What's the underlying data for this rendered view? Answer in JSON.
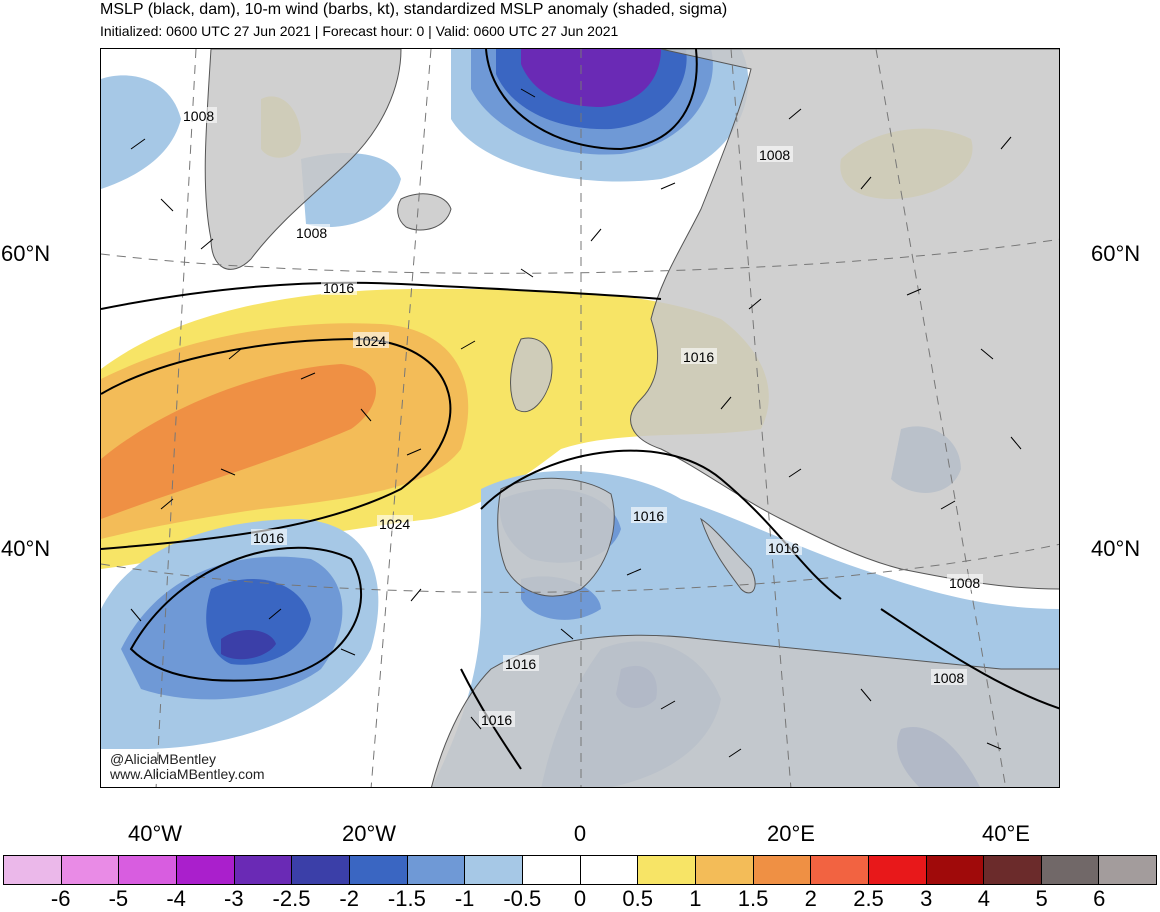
{
  "header": {
    "title": "MSLP (black, dam), 10-m wind (barbs, kt), standardized MSLP anomaly (shaded, sigma)",
    "subtitle": "Initialized: 0600 UTC 27 Jun 2021 | Forecast hour: 0 | Valid: 0600 UTC 27 Jun 2021"
  },
  "map": {
    "lat_labels": [
      "60°N",
      "40°N"
    ],
    "lon_labels": [
      "40°W",
      "20°W",
      "0",
      "20°E",
      "40°E"
    ],
    "isobar_labels": [
      "1008",
      "1008",
      "1016",
      "1024",
      "1024",
      "1016",
      "1016",
      "1016",
      "1016",
      "1016",
      "1016",
      "1008",
      "1008",
      "1008"
    ],
    "credit": [
      "@AliciaMBentley",
      "www.AliciaMBentley.com"
    ]
  },
  "colorbar": {
    "ticks": [
      "-6",
      "-5",
      "-4",
      "-3",
      "-2.5",
      "-2",
      "-1.5",
      "-1",
      "-0.5",
      "0",
      "0.5",
      "1",
      "1.5",
      "2",
      "2.5",
      "3",
      "4",
      "5",
      "6"
    ],
    "colors": [
      "#ebb8ea",
      "#e98be6",
      "#d85de0",
      "#aa1fcc",
      "#6a2ab5",
      "#3b3fa8",
      "#3a66c2",
      "#6f99d6",
      "#a6c8e6",
      "#ffffff",
      "#ffffff",
      "#f7e466",
      "#f3bc58",
      "#ef9044",
      "#f26341",
      "#e8181a",
      "#a00a0a",
      "#6b2b2b",
      "#716868",
      "#a39c9c"
    ]
  }
}
